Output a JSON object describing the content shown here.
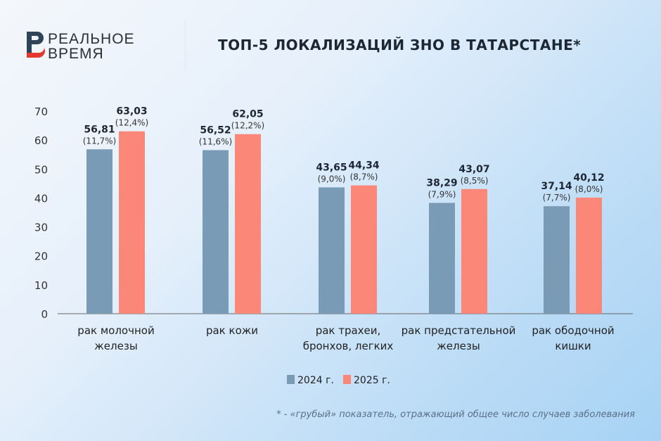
{
  "logo": {
    "line1": "РЕАЛЬНОЕ",
    "line2": "ВРЕМЯ"
  },
  "title": "ТОП-5 ЛОКАЛИЗАЦИЙ ЗНО В ТАТАРСТАНЕ*",
  "footnote": "* - «грубый» показатель, отражающий общее число случаев заболевания",
  "colors": {
    "2024": "#7a9bb5",
    "2025": "#fa8778"
  },
  "chart_data": {
    "type": "bar",
    "title": "ТОП-5 ЛОКАЛИЗАЦИЙ ЗНО В ТАТАРСТАНЕ*",
    "categories": [
      [
        "рак молочной",
        "железы"
      ],
      [
        "рак кожи"
      ],
      [
        "рак трахеи,",
        "бронхов, легких"
      ],
      [
        "рак предстательной",
        "железы"
      ],
      [
        "рак ободочной",
        "кишки"
      ]
    ],
    "series": [
      {
        "name": "2024 г.",
        "values": [
          56.81,
          56.52,
          43.65,
          38.29,
          37.14
        ],
        "labels": [
          "56,81",
          "56,52",
          "43,65",
          "38,29",
          "37,14"
        ],
        "shares": [
          "(11,7%)",
          "(11,6%)",
          "(9,0%)",
          "(7,9%)",
          "(7,7%)"
        ]
      },
      {
        "name": "2025 г.",
        "values": [
          63.03,
          62.05,
          44.34,
          43.07,
          40.12
        ],
        "labels": [
          "63,03",
          "62,05",
          "44,34",
          "43,07",
          "40,12"
        ],
        "shares": [
          "(12,4%)",
          "(12,2%)",
          "(8,7%)",
          "(8,5%)",
          "(8,0%)"
        ]
      }
    ],
    "yticks": [
      0,
      10,
      20,
      30,
      40,
      50,
      60,
      70
    ],
    "ylim": [
      0,
      70
    ],
    "grid": false,
    "legend": "bottom-center"
  }
}
